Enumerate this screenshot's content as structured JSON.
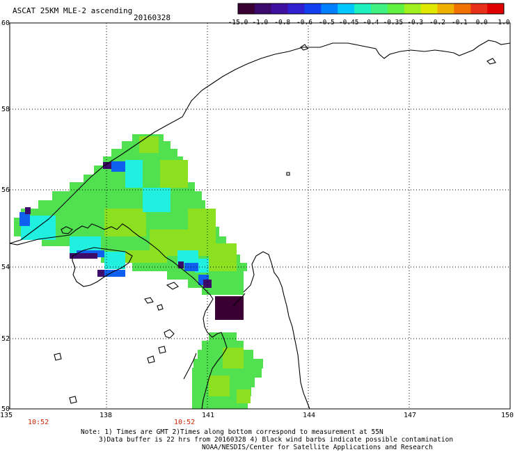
{
  "header": {
    "title": "ASCAT 25KM MLE-2 ascending",
    "date": "20160328"
  },
  "colorbar": {
    "ticks": [
      "-15.0",
      "-1.0",
      "-0.8",
      "-0.6",
      "-0.5",
      "-0.45",
      "-0.4",
      "-0.35",
      "-0.3",
      "-0.2",
      "-0.1",
      "0.0",
      "1.0"
    ],
    "colors": [
      "#3a0034",
      "#3c0a6a",
      "#4010a0",
      "#3020d0",
      "#1040f0",
      "#0080ff",
      "#00c8ff",
      "#20f0c0",
      "#40f080",
      "#60f040",
      "#a0f020",
      "#e0e800",
      "#f0b000",
      "#f07000",
      "#e83018",
      "#e00000"
    ]
  },
  "axes": {
    "lon_labels": [
      "135",
      "138",
      "141",
      "144",
      "147",
      "150"
    ],
    "lat_labels": [
      "60",
      "58",
      "56",
      "54",
      "52",
      "50"
    ]
  },
  "time_labels": [
    "10:52",
    "10:52"
  ],
  "time_color": "#cc2200",
  "notes": [
    "Note: 1) Times are GMT 2)Times along bottom correspond to measurement at 55N",
    "3)Data buffer is 22 hrs from 20160328 4) Black wind barbs indicate possible contamination",
    "NOAA/NESDIS/Center for Satellite Applications and Research"
  ],
  "data_colors": {
    "green": "#50e050",
    "lime": "#8ce020",
    "cyan": "#20f0e0",
    "blue": "#1060f0",
    "purple": "#3c0a6a",
    "dark": "#3a0034"
  }
}
